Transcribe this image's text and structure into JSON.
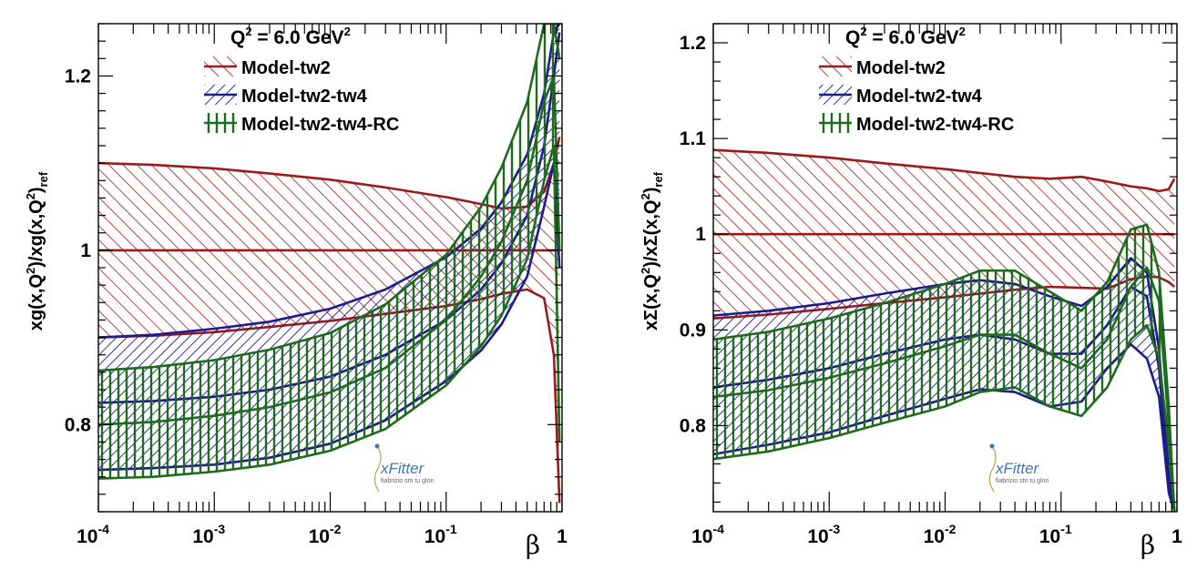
{
  "colors": {
    "tw2": "#9b1b1b",
    "tw4": "#1c1c8c",
    "rc": "#1e6b1e"
  },
  "logo": {
    "name": "xFitter",
    "subtitle": "fiabrizio stri tu glon"
  },
  "chart_data": [
    {
      "type": "area",
      "id": "gluon",
      "title": "Q² = 6.0 GeV²",
      "title_base": "Q",
      "title_exp": "2",
      "title_rest": " = 6.0 GeV",
      "title_exp2": "2",
      "ylabel": "xg(x,Q²)/xg(x,Q²)_ref",
      "ylabel_parts": [
        "xg(x,Q",
        "2",
        ")/xg(x,Q",
        "2",
        ")",
        "ref"
      ],
      "xlabel": "β",
      "xscale": "log",
      "xlim": [
        0.0001,
        1
      ],
      "ylim": [
        0.7,
        1.26
      ],
      "yticks": [
        0.8,
        1.0,
        1.2
      ],
      "ytick_labels": [
        "0.8",
        "1",
        "1.2"
      ],
      "xticks": [
        0.0001,
        0.001,
        0.01,
        0.1,
        1
      ],
      "xtick_labels": [
        [
          "10",
          "-4"
        ],
        [
          "10",
          "-3"
        ],
        [
          "10",
          "-2"
        ],
        [
          "10",
          "-1"
        ],
        [
          "1",
          ""
        ]
      ],
      "legend": [
        "Model-tw2",
        "Model-tw2-tw4",
        "Model-tw2-tw4-RC"
      ],
      "x": [
        0.0001,
        0.0003,
        0.001,
        0.003,
        0.01,
        0.03,
        0.1,
        0.2,
        0.3,
        0.5,
        0.7,
        0.85,
        0.95
      ],
      "series": [
        {
          "name": "Model-tw2",
          "central": [
            1.0,
            1.0,
            1.0,
            1.0,
            1.0,
            1.0,
            1.0,
            1.0,
            1.0,
            1.0,
            1.0,
            1.0,
            1.0
          ],
          "upper": [
            1.1,
            1.098,
            1.094,
            1.088,
            1.081,
            1.072,
            1.061,
            1.053,
            1.048,
            1.05,
            1.067,
            1.1,
            1.13
          ],
          "lower": [
            0.9,
            0.902,
            0.906,
            0.912,
            0.919,
            0.927,
            0.936,
            0.944,
            0.95,
            0.955,
            0.945,
            0.88,
            0.71
          ]
        },
        {
          "name": "Model-tw2-tw4",
          "central": [
            0.825,
            0.827,
            0.832,
            0.84,
            0.855,
            0.88,
            0.92,
            0.955,
            0.985,
            1.04,
            1.12,
            1.2,
            1.25
          ],
          "upper": [
            0.9,
            0.903,
            0.91,
            0.918,
            0.933,
            0.955,
            0.992,
            1.025,
            1.055,
            1.11,
            1.18,
            1.25,
            1.26
          ],
          "lower": [
            0.748,
            0.75,
            0.754,
            0.762,
            0.778,
            0.805,
            0.85,
            0.885,
            0.915,
            0.97,
            1.05,
            1.1,
            0.98
          ]
        },
        {
          "name": "Model-tw2-tw4-RC",
          "central": [
            0.8,
            0.803,
            0.81,
            0.82,
            0.837,
            0.865,
            0.92,
            0.97,
            1.01,
            1.08,
            1.17,
            1.2,
            1.0
          ],
          "upper": [
            0.862,
            0.866,
            0.874,
            0.886,
            0.905,
            0.938,
            0.995,
            1.05,
            1.095,
            1.17,
            1.26,
            1.26,
            1.22
          ],
          "lower": [
            0.738,
            0.74,
            0.746,
            0.754,
            0.77,
            0.795,
            0.845,
            0.89,
            0.925,
            0.99,
            1.08,
            1.12,
            0.78
          ]
        }
      ]
    },
    {
      "type": "area",
      "id": "singlet",
      "title": "Q² = 6.0 GeV²",
      "title_base": "Q",
      "title_exp": "2",
      "title_rest": " = 6.0 GeV",
      "title_exp2": "2",
      "ylabel": "xΣ(x,Q²)/xΣ(x,Q²)_ref",
      "ylabel_parts": [
        "xΣ(x,Q",
        "2",
        ")/xΣ(x,Q",
        "2",
        ")",
        "ref"
      ],
      "xlabel": "β",
      "xscale": "log",
      "xlim": [
        0.0001,
        1
      ],
      "ylim": [
        0.71,
        1.22
      ],
      "yticks": [
        0.8,
        0.9,
        1.0,
        1.1,
        1.2
      ],
      "ytick_labels": [
        "0.8",
        "0.9",
        "1",
        "1.1",
        "1.2"
      ],
      "xticks": [
        0.0001,
        0.001,
        0.01,
        0.1,
        1
      ],
      "xtick_labels": [
        [
          "10",
          "-4"
        ],
        [
          "10",
          "-3"
        ],
        [
          "10",
          "-2"
        ],
        [
          "10",
          "-1"
        ],
        [
          "1",
          ""
        ]
      ],
      "legend": [
        "Model-tw2",
        "Model-tw2-tw4",
        "Model-tw2-tw4-RC"
      ],
      "x": [
        0.0001,
        0.0003,
        0.001,
        0.003,
        0.01,
        0.02,
        0.04,
        0.08,
        0.15,
        0.25,
        0.4,
        0.55,
        0.7,
        0.85,
        0.95
      ],
      "series": [
        {
          "name": "Model-tw2",
          "central": [
            1.0,
            1.0,
            1.0,
            1.0,
            1.0,
            1.0,
            1.0,
            1.0,
            1.0,
            1.0,
            1.0,
            1.0,
            1.0,
            1.0,
            1.0
          ],
          "upper": [
            1.088,
            1.085,
            1.08,
            1.074,
            1.068,
            1.064,
            1.06,
            1.058,
            1.06,
            1.055,
            1.05,
            1.048,
            1.045,
            1.047,
            1.058
          ],
          "lower": [
            0.912,
            0.916,
            0.922,
            0.928,
            0.934,
            0.938,
            0.942,
            0.945,
            0.944,
            0.943,
            0.953,
            0.956,
            0.955,
            0.95,
            0.945
          ]
        },
        {
          "name": "Model-tw2-tw4",
          "central": [
            0.84,
            0.848,
            0.86,
            0.875,
            0.89,
            0.895,
            0.89,
            0.875,
            0.875,
            0.905,
            0.945,
            0.935,
            0.86,
            0.74,
            0.71
          ],
          "upper": [
            0.915,
            0.92,
            0.928,
            0.938,
            0.948,
            0.952,
            0.948,
            0.935,
            0.925,
            0.945,
            0.975,
            0.96,
            0.88,
            0.75,
            0.71
          ],
          "lower": [
            0.77,
            0.78,
            0.793,
            0.81,
            0.828,
            0.838,
            0.835,
            0.82,
            0.825,
            0.86,
            0.885,
            0.87,
            0.83,
            0.73,
            0.71
          ]
        },
        {
          "name": "Model-tw2-tw4-RC",
          "central": [
            0.83,
            0.837,
            0.85,
            0.865,
            0.883,
            0.895,
            0.895,
            0.875,
            0.86,
            0.89,
            0.945,
            0.965,
            0.93,
            0.8,
            0.71
          ],
          "upper": [
            0.89,
            0.898,
            0.912,
            0.928,
            0.948,
            0.962,
            0.962,
            0.94,
            0.92,
            0.95,
            1.005,
            1.01,
            0.96,
            0.82,
            0.71
          ],
          "lower": [
            0.765,
            0.773,
            0.787,
            0.803,
            0.82,
            0.835,
            0.84,
            0.82,
            0.81,
            0.84,
            0.89,
            0.905,
            0.87,
            0.78,
            0.71
          ]
        }
      ]
    }
  ]
}
